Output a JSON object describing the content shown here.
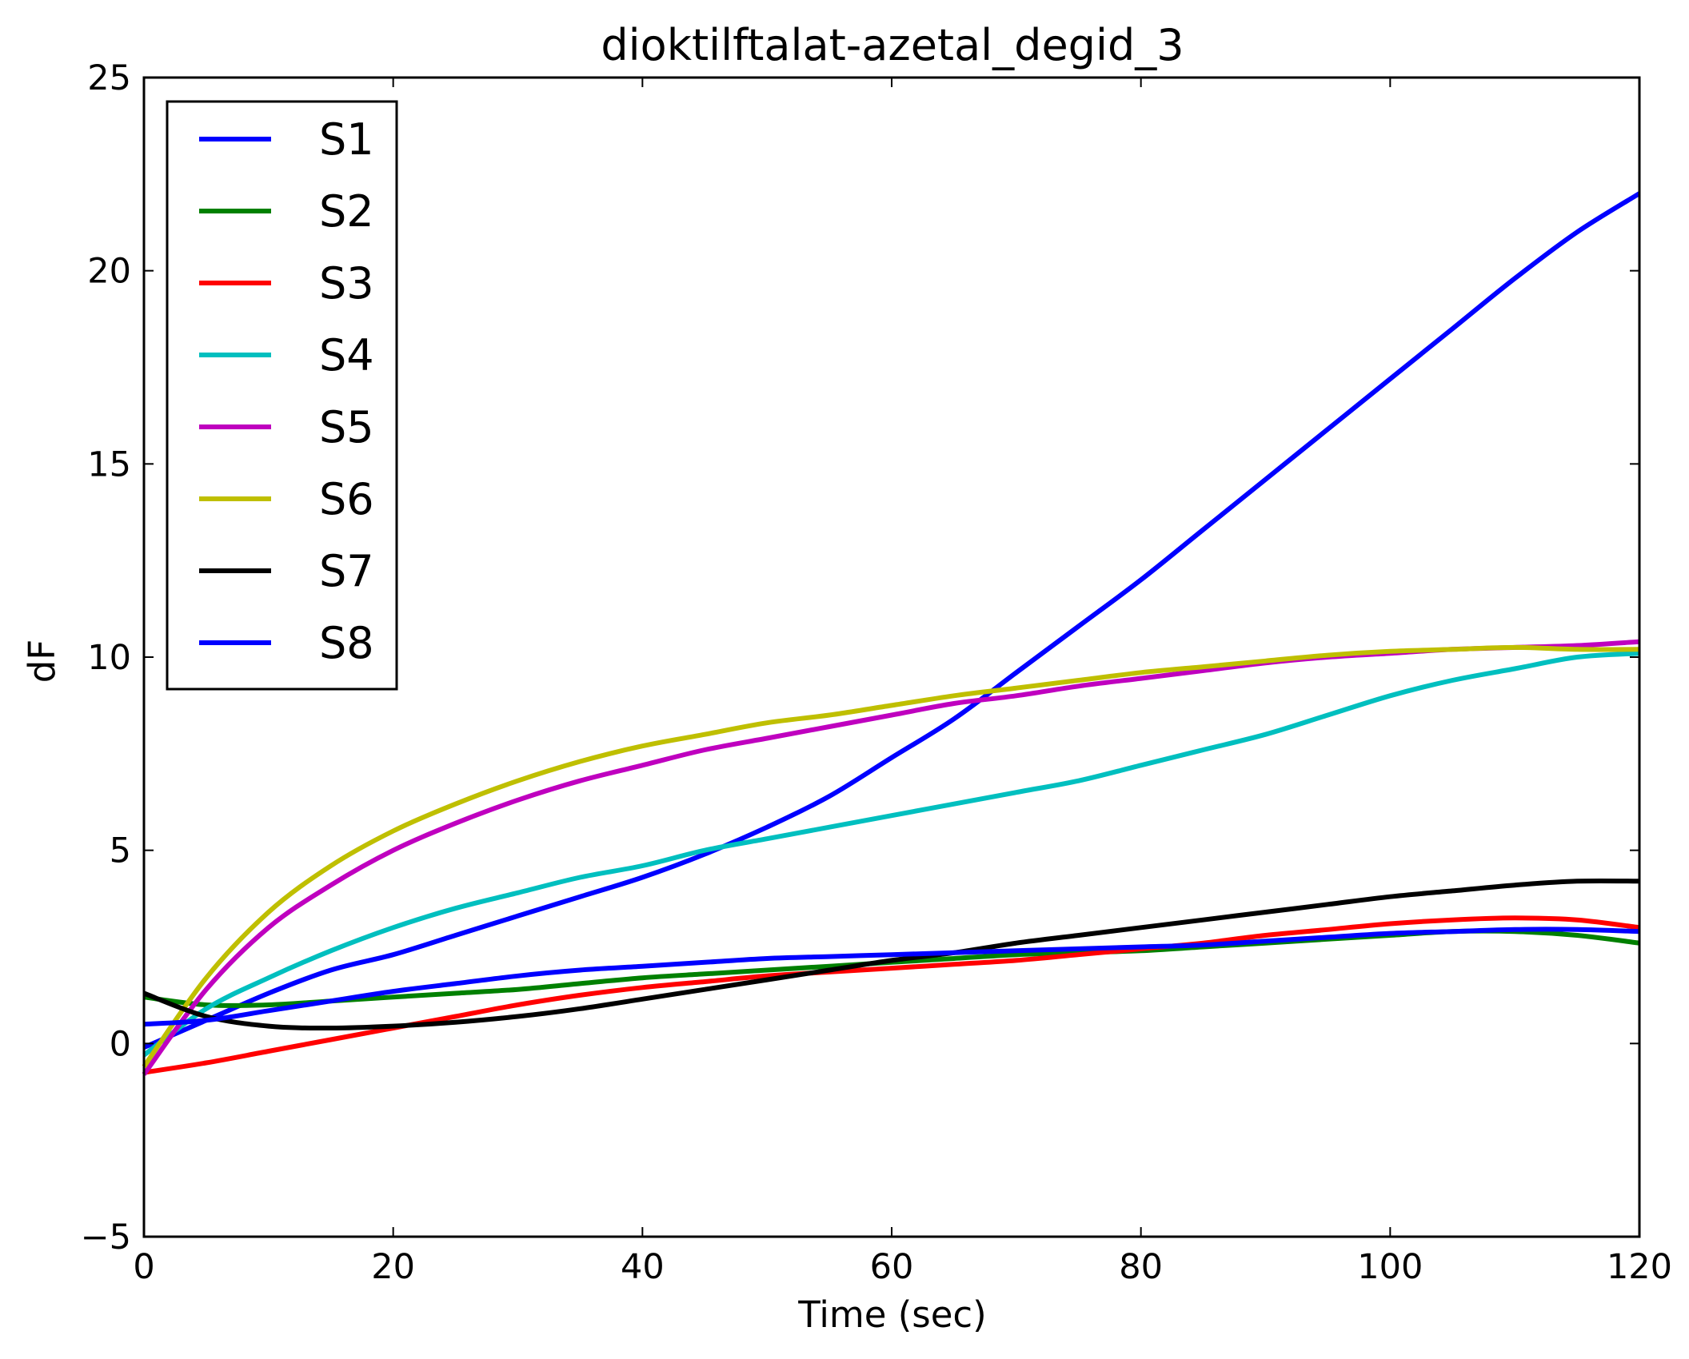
{
  "chart_data": {
    "type": "line",
    "title": "dioktilftalat-azetal_degid_3",
    "xlabel": "Time (sec)",
    "ylabel": "dF",
    "xlim": [
      0,
      120
    ],
    "ylim": [
      -5,
      25
    ],
    "xticks": [
      0,
      20,
      40,
      60,
      80,
      100,
      120
    ],
    "yticks": [
      -5,
      0,
      5,
      10,
      15,
      20,
      25
    ],
    "ytick_labels": [
      "−5",
      "0",
      "5",
      "10",
      "15",
      "20",
      "25"
    ],
    "grid": false,
    "legend_position": "top-left",
    "x": [
      0,
      5,
      10,
      15,
      20,
      25,
      30,
      35,
      40,
      45,
      50,
      55,
      60,
      65,
      70,
      75,
      80,
      85,
      90,
      95,
      100,
      105,
      110,
      115,
      120
    ],
    "series": [
      {
        "name": "S1",
        "color": "#0000ff",
        "values": [
          -0.1,
          0.6,
          1.3,
          1.9,
          2.3,
          2.8,
          3.3,
          3.8,
          4.3,
          4.9,
          5.6,
          6.4,
          7.4,
          8.4,
          9.6,
          10.8,
          12.0,
          13.3,
          14.6,
          15.9,
          17.2,
          18.5,
          19.8,
          21.0,
          22.0
        ]
      },
      {
        "name": "S2",
        "color": "#008000",
        "values": [
          1.2,
          1.0,
          1.0,
          1.1,
          1.2,
          1.3,
          1.4,
          1.55,
          1.7,
          1.8,
          1.9,
          2.0,
          2.1,
          2.2,
          2.3,
          2.35,
          2.4,
          2.5,
          2.6,
          2.7,
          2.8,
          2.9,
          2.9,
          2.8,
          2.6
        ]
      },
      {
        "name": "S3",
        "color": "#ff0000",
        "values": [
          -0.75,
          -0.5,
          -0.2,
          0.1,
          0.4,
          0.7,
          1.0,
          1.25,
          1.45,
          1.6,
          1.75,
          1.85,
          1.95,
          2.05,
          2.15,
          2.3,
          2.45,
          2.6,
          2.8,
          2.95,
          3.1,
          3.2,
          3.25,
          3.2,
          3.0
        ]
      },
      {
        "name": "S4",
        "color": "#00bfbf",
        "values": [
          -0.3,
          0.9,
          1.7,
          2.4,
          3.0,
          3.5,
          3.9,
          4.3,
          4.6,
          5.0,
          5.3,
          5.6,
          5.9,
          6.2,
          6.5,
          6.8,
          7.2,
          7.6,
          8.0,
          8.5,
          9.0,
          9.4,
          9.7,
          10.0,
          10.1
        ]
      },
      {
        "name": "S5",
        "color": "#bf00bf",
        "values": [
          -0.8,
          1.4,
          3.0,
          4.1,
          5.0,
          5.7,
          6.3,
          6.8,
          7.2,
          7.6,
          7.9,
          8.2,
          8.5,
          8.8,
          9.0,
          9.25,
          9.45,
          9.65,
          9.85,
          10.0,
          10.1,
          10.2,
          10.25,
          10.3,
          10.4
        ]
      },
      {
        "name": "S6",
        "color": "#bfbf00",
        "values": [
          -0.6,
          1.7,
          3.4,
          4.6,
          5.5,
          6.2,
          6.8,
          7.3,
          7.7,
          8.0,
          8.3,
          8.5,
          8.75,
          9.0,
          9.2,
          9.4,
          9.6,
          9.75,
          9.9,
          10.05,
          10.15,
          10.2,
          10.25,
          10.2,
          10.2
        ]
      },
      {
        "name": "S7",
        "color": "#000000",
        "values": [
          1.3,
          0.7,
          0.45,
          0.4,
          0.45,
          0.55,
          0.7,
          0.9,
          1.15,
          1.4,
          1.65,
          1.9,
          2.15,
          2.35,
          2.6,
          2.8,
          3.0,
          3.2,
          3.4,
          3.6,
          3.8,
          3.95,
          4.1,
          4.2,
          4.2
        ]
      },
      {
        "name": "S8",
        "color": "#0000ff",
        "values": [
          0.5,
          0.6,
          0.85,
          1.1,
          1.35,
          1.55,
          1.75,
          1.9,
          2.0,
          2.1,
          2.2,
          2.25,
          2.3,
          2.35,
          2.4,
          2.45,
          2.5,
          2.55,
          2.65,
          2.75,
          2.85,
          2.9,
          2.95,
          2.95,
          2.9
        ]
      }
    ]
  }
}
